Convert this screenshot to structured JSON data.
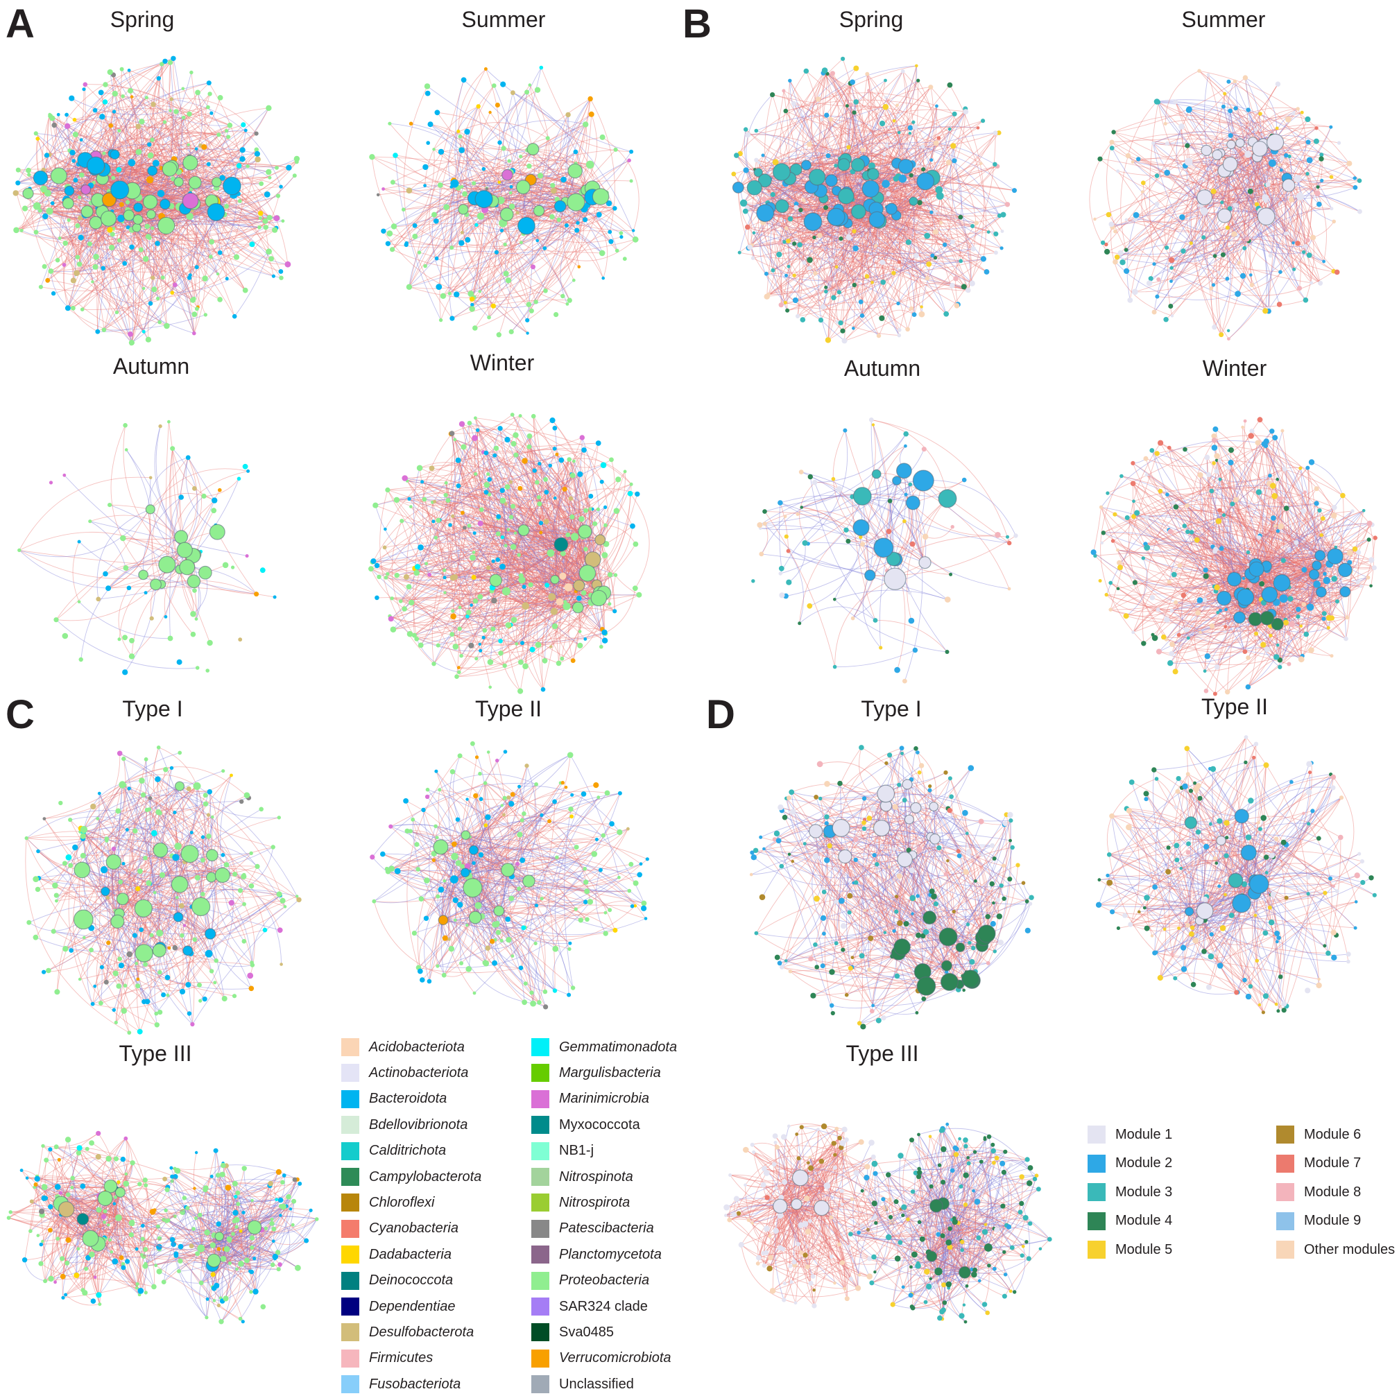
{
  "panels": [
    {
      "letter": "A",
      "titles": [
        "Spring",
        "Summer",
        "Autumn",
        "Winter"
      ]
    },
    {
      "letter": "B",
      "titles": [
        "Spring",
        "Summer",
        "Autumn",
        "Winter"
      ]
    },
    {
      "letter": "C",
      "titles": [
        "Type I",
        "Type II",
        "Type III"
      ]
    },
    {
      "letter": "D",
      "titles": [
        "Type I",
        "Type II",
        "Type III"
      ]
    }
  ],
  "edge_colors": {
    "positive": "#e8736f",
    "negative": "#7a7ad8"
  },
  "phylum_legend": [
    {
      "label": "Acidobacteriota",
      "color": "#fbd5b5",
      "italic": true
    },
    {
      "label": "Actinobacteriota",
      "color": "#e4e4f6",
      "italic": true
    },
    {
      "label": "Bacteroidota",
      "color": "#00b4f0",
      "italic": true
    },
    {
      "label": "Bdellovibrionota",
      "color": "#d5ecd8",
      "italic": true
    },
    {
      "label": "Calditrichota",
      "color": "#14cccc",
      "italic": true
    },
    {
      "label": "Campylobacterota",
      "color": "#2e8b57",
      "italic": true
    },
    {
      "label": "Chloroflexi",
      "color": "#b8860b",
      "italic": true
    },
    {
      "label": "Cyanobacteria",
      "color": "#f47c6c",
      "italic": true
    },
    {
      "label": "Dadabacteria",
      "color": "#ffd700",
      "italic": true
    },
    {
      "label": "Deinococcota",
      "color": "#008080",
      "italic": true
    },
    {
      "label": "Dependentiae",
      "color": "#000080",
      "italic": true
    },
    {
      "label": "Desulfobacterota",
      "color": "#d2bd7a",
      "italic": true
    },
    {
      "label": "Firmicutes",
      "color": "#f6b6bd",
      "italic": true
    },
    {
      "label": "Fusobacteriota",
      "color": "#87cefa",
      "italic": true
    },
    {
      "label": "Gemmatimonadota",
      "color": "#00f0f8",
      "italic": true
    },
    {
      "label": "Margulisbacteria",
      "color": "#66cc00",
      "italic": true
    },
    {
      "label": "Marinimicrobia",
      "color": "#da70d6",
      "italic": true
    },
    {
      "label": "Myxococcota",
      "color": "#008b8b",
      "italic": false
    },
    {
      "label": "NB1-j",
      "color": "#7fffd4",
      "italic": false
    },
    {
      "label": "Nitrospinota",
      "color": "#a3d39c",
      "italic": true
    },
    {
      "label": "Nitrospirota",
      "color": "#9acd32",
      "italic": true
    },
    {
      "label": "Patescibacteria",
      "color": "#888888",
      "italic": true
    },
    {
      "label": "Planctomycetota",
      "color": "#8b668b",
      "italic": true
    },
    {
      "label": "Proteobacteria",
      "color": "#90ee90",
      "italic": true
    },
    {
      "label": "SAR324 clade",
      "color": "#a57df5",
      "italic": false
    },
    {
      "label": "Sva0485",
      "color": "#004d26",
      "italic": false
    },
    {
      "label": "Verrucomicrobiota",
      "color": "#f8a000",
      "italic": true
    },
    {
      "label": "Unclassified",
      "color": "#a0aab6",
      "italic": false
    }
  ],
  "module_legend": [
    {
      "label": "Module 1",
      "color": "#e4e4f2"
    },
    {
      "label": "Module 2",
      "color": "#2ea8e6"
    },
    {
      "label": "Module 3",
      "color": "#3ab9b9"
    },
    {
      "label": "Module 4",
      "color": "#2e8556"
    },
    {
      "label": "Module 5",
      "color": "#f7d12e"
    },
    {
      "label": "Module 6",
      "color": "#b08a2e"
    },
    {
      "label": "Module 7",
      "color": "#ec7a6e"
    },
    {
      "label": "Module 8",
      "color": "#f3b4bc"
    },
    {
      "label": "Module 9",
      "color": "#8ec2ea"
    },
    {
      "label": "Other modules",
      "color": "#f8d6b8"
    }
  ]
}
